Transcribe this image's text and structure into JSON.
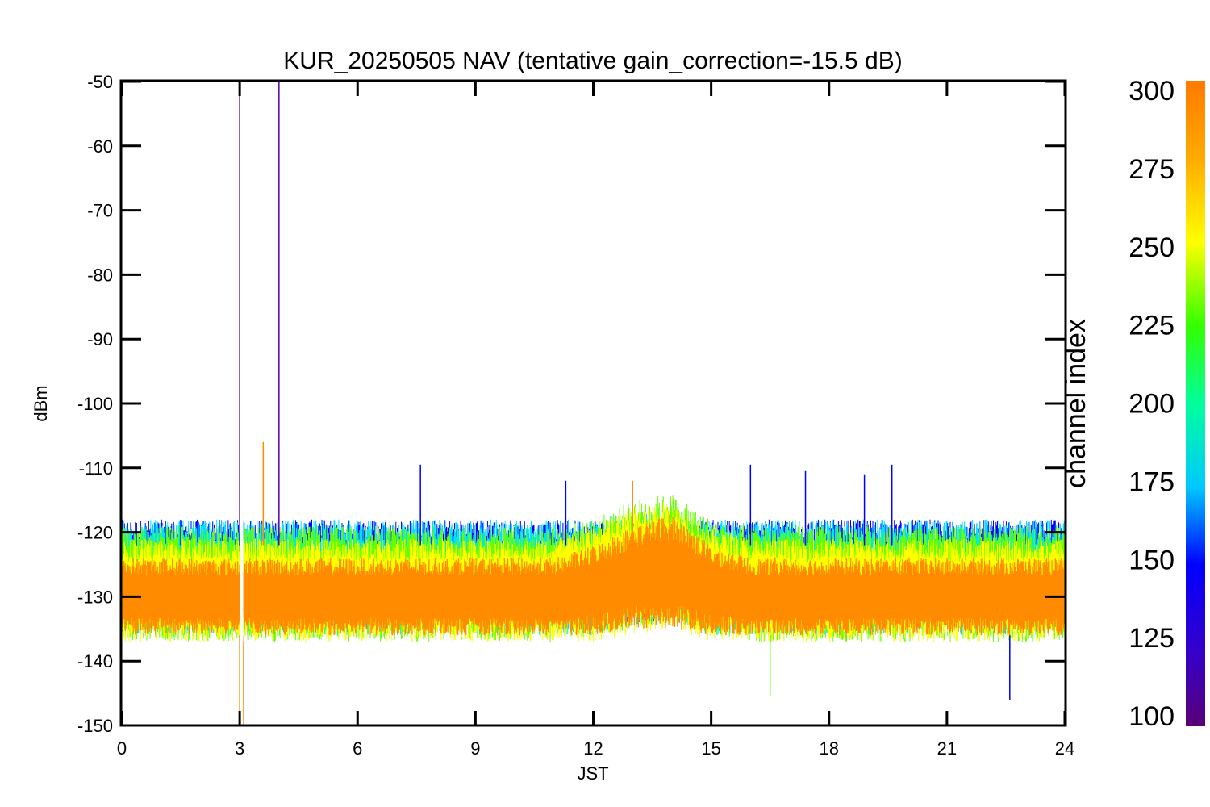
{
  "chart_data": {
    "type": "line",
    "title": "KUR_20250505 NAV (tentative gain_correction=-15.5 dB)",
    "xlabel": "JST",
    "ylabel": "dBm",
    "xlim": [
      0,
      24
    ],
    "ylim": [
      -150,
      -50
    ],
    "xticks": [
      0,
      3,
      6,
      9,
      12,
      15,
      18,
      21,
      24
    ],
    "yticks": [
      -50,
      -60,
      -70,
      -80,
      -90,
      -100,
      -110,
      -120,
      -130,
      -140,
      -150
    ],
    "grid": false,
    "legend": "none",
    "colorbar": {
      "label": "channel index",
      "range": [
        100,
        300
      ],
      "ticks": [
        300,
        275,
        250,
        225,
        200,
        175,
        150,
        125,
        100
      ],
      "colormap": "rainbow"
    },
    "series": [
      {
        "channel_index": 300,
        "color": "#ff8c00",
        "description_values": "dense noise band",
        "x": [
          0,
          1,
          2,
          3,
          4,
          5,
          6,
          7,
          8,
          9,
          10,
          11,
          12,
          13,
          14,
          15,
          16,
          17,
          18,
          19,
          20,
          21,
          22,
          23,
          24
        ],
        "y_center": [
          -130,
          -130,
          -130,
          -130,
          -130,
          -130,
          -130,
          -130,
          -130,
          -130,
          -130,
          -130,
          -129,
          -127,
          -126,
          -129,
          -130,
          -130,
          -130,
          -130,
          -130,
          -130,
          -130,
          -130,
          -130
        ],
        "y_spread": [
          6,
          6,
          6,
          6,
          6,
          6,
          6,
          6,
          6,
          6,
          6,
          6,
          7,
          8,
          9,
          7,
          6,
          6,
          6,
          6,
          6,
          6,
          6,
          6,
          6
        ]
      },
      {
        "channel_index": 270,
        "color": "#ffff00",
        "x": [
          0,
          1,
          2,
          3,
          4,
          5,
          6,
          7,
          8,
          9,
          10,
          11,
          12,
          13,
          14,
          15,
          16,
          17,
          18,
          19,
          20,
          21,
          22,
          23,
          24
        ],
        "y_center": [
          -129,
          -129,
          -129,
          -129,
          -129,
          -129,
          -129,
          -129,
          -129,
          -129,
          -129,
          -129,
          -128,
          -126,
          -125,
          -128,
          -129,
          -129,
          -129,
          -129,
          -129,
          -129,
          -129,
          -129,
          -129
        ],
        "y_spread": [
          8,
          8,
          8,
          8,
          8,
          8,
          8,
          8,
          8,
          8,
          8,
          8,
          9,
          10,
          10,
          9,
          8,
          8,
          8,
          8,
          8,
          8,
          8,
          8,
          8
        ]
      },
      {
        "channel_index": 235,
        "color": "#66ff00",
        "x": [
          0,
          1,
          2,
          3,
          4,
          5,
          6,
          7,
          8,
          9,
          10,
          11,
          12,
          13,
          14,
          15,
          16,
          17,
          18,
          19,
          20,
          21,
          22,
          23,
          24
        ],
        "y_center": [
          -128,
          -128,
          -128,
          -128,
          -128,
          -128,
          -128,
          -128,
          -128,
          -128,
          -128,
          -128,
          -127,
          -125,
          -124,
          -127,
          -128,
          -128,
          -128,
          -128,
          -128,
          -128,
          -128,
          -128,
          -128
        ],
        "y_spread": [
          9,
          9,
          9,
          9,
          9,
          9,
          9,
          9,
          9,
          9,
          9,
          9,
          9,
          10,
          10,
          9,
          9,
          9,
          9,
          9,
          9,
          9,
          9,
          9,
          9
        ]
      },
      {
        "channel_index": 180,
        "color": "#00e0ff",
        "x": [
          0,
          1,
          2,
          3,
          4,
          5,
          6,
          7,
          8,
          9,
          10,
          11,
          12,
          13,
          14,
          15,
          16,
          17,
          18,
          19,
          20,
          21,
          22,
          23,
          24
        ],
        "y_center": [
          -127,
          -127,
          -127,
          -127,
          -127,
          -127,
          -127,
          -127,
          -127,
          -127,
          -127,
          -127,
          -127,
          -126,
          -125,
          -127,
          -127,
          -127,
          -127,
          -127,
          -127,
          -127,
          -127,
          -127,
          -127
        ],
        "y_spread": [
          9,
          9,
          9,
          9,
          9,
          9,
          9,
          9,
          9,
          9,
          9,
          9,
          9,
          9,
          9,
          9,
          9,
          9,
          9,
          9,
          9,
          9,
          9,
          9,
          9
        ]
      },
      {
        "channel_index": 140,
        "color": "#0000ff",
        "x": [
          0,
          1,
          2,
          3,
          4,
          5,
          6,
          7,
          8,
          9,
          10,
          11,
          12,
          13,
          14,
          15,
          16,
          17,
          18,
          19,
          20,
          21,
          22,
          23,
          24
        ],
        "y_center": [
          -126,
          -126,
          -126,
          -126,
          -126,
          -126,
          -126,
          -126,
          -126,
          -126,
          -126,
          -126,
          -126,
          -126,
          -126,
          -126,
          -126,
          -126,
          -126,
          -126,
          -126,
          -126,
          -126,
          -126,
          -126
        ],
        "y_spread": [
          8,
          8,
          8,
          8,
          8,
          8,
          8,
          8,
          8,
          8,
          8,
          8,
          8,
          8,
          8,
          8,
          8,
          8,
          8,
          8,
          8,
          8,
          8,
          8,
          8
        ]
      }
    ],
    "spikes": [
      {
        "x": 3.0,
        "y_top": -50,
        "y_bottom": -122,
        "color": "#5500aa"
      },
      {
        "x": 4.0,
        "y_top": -50,
        "y_bottom": -122,
        "color": "#5500aa"
      },
      {
        "x": 3.6,
        "y_top": -106,
        "y_bottom": -122,
        "color": "#ff8c00"
      },
      {
        "x": 3.0,
        "y_top": -136,
        "y_bottom": -150,
        "color": "#ff8c00"
      },
      {
        "x": 3.1,
        "y_top": -136,
        "y_bottom": -150,
        "color": "#ff8c00"
      },
      {
        "x": 7.6,
        "y_top": -109.5,
        "y_bottom": -122,
        "color": "#0000ff"
      },
      {
        "x": 11.3,
        "y_top": -112,
        "y_bottom": -122,
        "color": "#0000ff"
      },
      {
        "x": 13.0,
        "y_top": -112,
        "y_bottom": -122,
        "color": "#ff8c00"
      },
      {
        "x": 16.0,
        "y_top": -109.5,
        "y_bottom": -122,
        "color": "#0000ff"
      },
      {
        "x": 17.4,
        "y_top": -110.5,
        "y_bottom": -122,
        "color": "#0000ff"
      },
      {
        "x": 18.9,
        "y_top": -111,
        "y_bottom": -122,
        "color": "#0000ff"
      },
      {
        "x": 19.6,
        "y_top": -109.5,
        "y_bottom": -122,
        "color": "#0000ff"
      },
      {
        "x": 16.5,
        "y_top": -136,
        "y_bottom": -145.5,
        "color": "#66ff00"
      },
      {
        "x": 22.6,
        "y_top": -136,
        "y_bottom": -146,
        "color": "#0000ff"
      }
    ],
    "data_gap": {
      "x": 3.05,
      "y_top": -121,
      "y_bottom": -137
    }
  }
}
